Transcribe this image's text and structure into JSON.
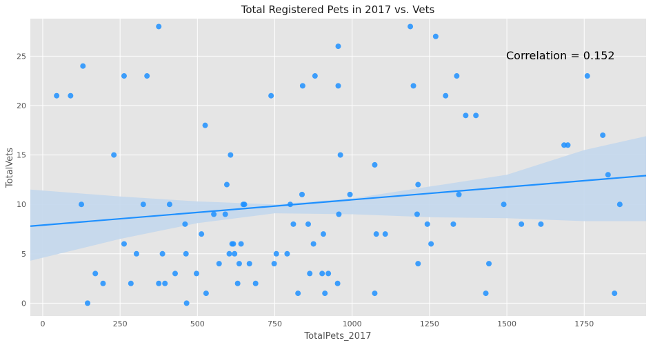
{
  "chart_data": {
    "type": "scatter",
    "title": "Total Registered Pets in 2017 vs. Vets",
    "xlabel": "TotalPets_2017",
    "ylabel": "TotalVets",
    "xlim": [
      -40,
      1950
    ],
    "ylim": [
      -1.3,
      28.8
    ],
    "xticks": [
      0,
      250,
      500,
      750,
      1000,
      1250,
      1500,
      1750
    ],
    "yticks": [
      0,
      5,
      10,
      15,
      20,
      25
    ],
    "xtick_labels": [
      "0",
      "250",
      "500",
      "750",
      "1000",
      "1250",
      "1500",
      "1750"
    ],
    "ytick_labels": [
      "0",
      "5",
      "10",
      "15",
      "20",
      "25"
    ],
    "grid": true,
    "annotation": "Correlation = 0.152",
    "colors": {
      "background": "#e5e5e5",
      "grid": "#ffffff",
      "point": "#1e90ff",
      "line": "#1e90ff",
      "band": "#c3d7ec"
    },
    "regression": {
      "slope": 0.00257,
      "intercept": 7.9,
      "ci_upper": [
        [
          -40,
          11.5
        ],
        [
          0,
          11.4
        ],
        [
          250,
          10.8
        ],
        [
          500,
          10.3
        ],
        [
          750,
          10.0
        ],
        [
          1000,
          10.6
        ],
        [
          1250,
          11.8
        ],
        [
          1500,
          13.0
        ],
        [
          1750,
          15.5
        ],
        [
          1950,
          16.9
        ]
      ],
      "ci_lower": [
        [
          -40,
          4.3
        ],
        [
          0,
          4.6
        ],
        [
          250,
          6.5
        ],
        [
          500,
          8.1
        ],
        [
          750,
          9.1
        ],
        [
          1000,
          9.0
        ],
        [
          1250,
          8.7
        ],
        [
          1500,
          8.6
        ],
        [
          1750,
          8.3
        ],
        [
          1950,
          8.3
        ]
      ]
    },
    "points": [
      [
        45,
        21
      ],
      [
        90,
        21
      ],
      [
        125,
        10
      ],
      [
        130,
        24
      ],
      [
        145,
        0
      ],
      [
        170,
        3
      ],
      [
        195,
        2
      ],
      [
        230,
        15
      ],
      [
        263,
        23
      ],
      [
        263,
        6
      ],
      [
        285,
        2
      ],
      [
        303,
        5
      ],
      [
        325,
        10
      ],
      [
        337,
        23
      ],
      [
        375,
        28
      ],
      [
        375,
        2
      ],
      [
        387,
        5
      ],
      [
        395,
        2
      ],
      [
        410,
        10
      ],
      [
        428,
        3
      ],
      [
        460,
        8
      ],
      [
        463,
        5
      ],
      [
        465,
        0
      ],
      [
        497,
        3
      ],
      [
        513,
        7
      ],
      [
        525,
        18
      ],
      [
        528,
        1
      ],
      [
        553,
        9
      ],
      [
        570,
        4
      ],
      [
        590,
        9
      ],
      [
        595,
        12
      ],
      [
        603,
        5
      ],
      [
        607,
        15
      ],
      [
        612,
        6
      ],
      [
        616,
        6
      ],
      [
        620,
        5
      ],
      [
        630,
        2
      ],
      [
        635,
        4
      ],
      [
        641,
        6
      ],
      [
        648,
        10
      ],
      [
        652,
        10
      ],
      [
        668,
        4
      ],
      [
        688,
        2
      ],
      [
        738,
        21
      ],
      [
        748,
        4
      ],
      [
        755,
        5
      ],
      [
        790,
        5
      ],
      [
        800,
        10
      ],
      [
        810,
        8
      ],
      [
        825,
        1
      ],
      [
        838,
        11
      ],
      [
        840,
        22
      ],
      [
        858,
        8
      ],
      [
        863,
        3
      ],
      [
        875,
        6
      ],
      [
        880,
        23
      ],
      [
        903,
        3
      ],
      [
        907,
        7
      ],
      [
        912,
        1
      ],
      [
        923,
        3
      ],
      [
        953,
        2
      ],
      [
        955,
        22
      ],
      [
        955,
        26
      ],
      [
        957,
        9
      ],
      [
        962,
        15
      ],
      [
        993,
        11
      ],
      [
        1073,
        14
      ],
      [
        1073,
        1
      ],
      [
        1078,
        7
      ],
      [
        1107,
        7
      ],
      [
        1188,
        28
      ],
      [
        1198,
        22
      ],
      [
        1210,
        9
      ],
      [
        1213,
        12
      ],
      [
        1213,
        4
      ],
      [
        1243,
        8
      ],
      [
        1255,
        6
      ],
      [
        1270,
        27
      ],
      [
        1302,
        21
      ],
      [
        1327,
        8
      ],
      [
        1338,
        23
      ],
      [
        1345,
        11
      ],
      [
        1367,
        19
      ],
      [
        1400,
        19
      ],
      [
        1432,
        1
      ],
      [
        1442,
        4
      ],
      [
        1490,
        10
      ],
      [
        1547,
        8
      ],
      [
        1610,
        8
      ],
      [
        1685,
        16
      ],
      [
        1697,
        16
      ],
      [
        1760,
        23
      ],
      [
        1810,
        17
      ],
      [
        1827,
        13
      ],
      [
        1848,
        1
      ],
      [
        1865,
        10
      ]
    ]
  }
}
